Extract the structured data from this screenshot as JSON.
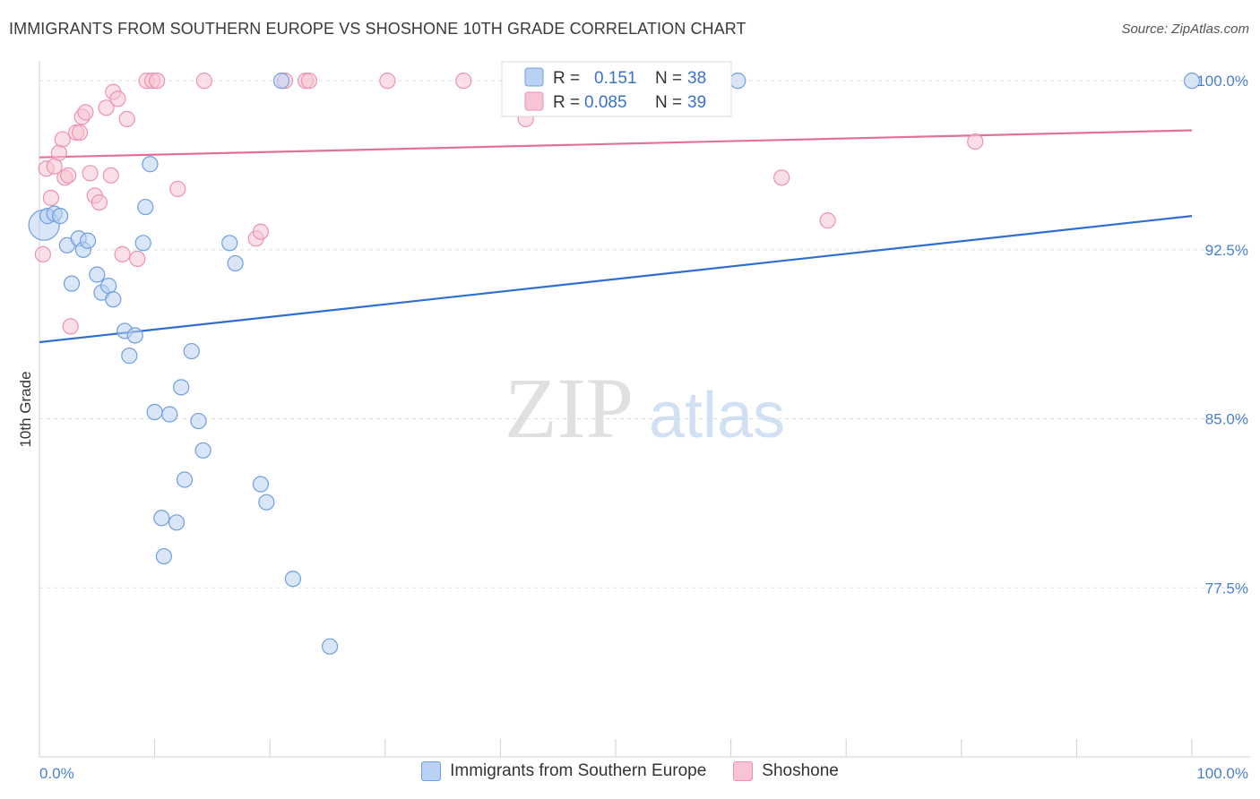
{
  "title": "IMMIGRANTS FROM SOUTHERN EUROPE VS SHOSHONE 10TH GRADE CORRELATION CHART",
  "source": "Source: ZipAtlas.com",
  "watermark": {
    "zip": "ZIP",
    "atlas": "atlas"
  },
  "legend_labels": {
    "r": "R =",
    "n": "N ="
  },
  "colors": {
    "blue_fill": "#b9d2f3",
    "blue_stroke": "#6f9fdc",
    "blue_line": "#2e6fd0",
    "pink_fill": "#f8c4d4",
    "pink_stroke": "#ec93ae",
    "pink_line": "#e2709a",
    "grid": "#dedede",
    "axis_label": "#4a7fd0"
  },
  "chart_data": {
    "type": "scatter",
    "title": "IMMIGRANTS FROM SOUTHERN EUROPE VS SHOSHONE 10TH GRADE CORRELATION CHART",
    "xlabel": "",
    "ylabel": "10th Grade",
    "xlim": [
      0,
      100
    ],
    "ylim": [
      70.0,
      100.8
    ],
    "x_tick_labels": [
      "0.0%",
      "100.0%"
    ],
    "y_ticks": [
      100.0,
      92.5,
      85.0,
      77.5
    ],
    "y_tick_labels": [
      "100.0%",
      "92.5%",
      "85.0%",
      "77.5%"
    ],
    "grid": true,
    "series": [
      {
        "name": "Immigrants from Southern Europe",
        "color": "blue",
        "R": "0.151",
        "N": "38",
        "trend": {
          "x": [
            0,
            100
          ],
          "y": [
            88.4,
            94.0
          ]
        },
        "points": [
          {
            "x": 0.4,
            "y": 93.6,
            "big": true
          },
          {
            "x": 0.7,
            "y": 94.0
          },
          {
            "x": 1.3,
            "y": 94.1
          },
          {
            "x": 1.8,
            "y": 94.0
          },
          {
            "x": 2.4,
            "y": 92.7
          },
          {
            "x": 2.8,
            "y": 91.0
          },
          {
            "x": 3.4,
            "y": 93.0
          },
          {
            "x": 3.8,
            "y": 92.5
          },
          {
            "x": 4.2,
            "y": 92.9
          },
          {
            "x": 5.0,
            "y": 91.4
          },
          {
            "x": 5.4,
            "y": 90.6
          },
          {
            "x": 6.0,
            "y": 90.9
          },
          {
            "x": 6.4,
            "y": 90.3
          },
          {
            "x": 7.4,
            "y": 88.9
          },
          {
            "x": 7.8,
            "y": 87.8
          },
          {
            "x": 8.3,
            "y": 88.7
          },
          {
            "x": 9.0,
            "y": 92.8
          },
          {
            "x": 9.2,
            "y": 94.4
          },
          {
            "x": 9.6,
            "y": 96.3
          },
          {
            "x": 10.0,
            "y": 85.3
          },
          {
            "x": 10.6,
            "y": 80.6
          },
          {
            "x": 10.8,
            "y": 78.9
          },
          {
            "x": 11.3,
            "y": 85.2
          },
          {
            "x": 11.9,
            "y": 80.4
          },
          {
            "x": 12.3,
            "y": 86.4
          },
          {
            "x": 12.6,
            "y": 82.3
          },
          {
            "x": 13.2,
            "y": 88.0
          },
          {
            "x": 13.8,
            "y": 84.9
          },
          {
            "x": 14.2,
            "y": 83.6
          },
          {
            "x": 16.5,
            "y": 92.8
          },
          {
            "x": 17.0,
            "y": 91.9
          },
          {
            "x": 19.2,
            "y": 82.1
          },
          {
            "x": 19.7,
            "y": 81.3
          },
          {
            "x": 21.0,
            "y": 100.0
          },
          {
            "x": 22.0,
            "y": 77.9
          },
          {
            "x": 25.2,
            "y": 74.9
          },
          {
            "x": 60.6,
            "y": 100.0
          },
          {
            "x": 100.0,
            "y": 100.0
          }
        ]
      },
      {
        "name": "Shoshone",
        "color": "pink",
        "R": "0.085",
        "N": "39",
        "trend": {
          "x": [
            0,
            100
          ],
          "y": [
            96.6,
            97.8
          ]
        },
        "points": [
          {
            "x": 0.3,
            "y": 92.3
          },
          {
            "x": 0.6,
            "y": 96.1
          },
          {
            "x": 1.0,
            "y": 94.8
          },
          {
            "x": 1.3,
            "y": 96.2
          },
          {
            "x": 1.7,
            "y": 96.8
          },
          {
            "x": 2.0,
            "y": 97.4
          },
          {
            "x": 2.2,
            "y": 95.7
          },
          {
            "x": 2.5,
            "y": 95.8
          },
          {
            "x": 2.7,
            "y": 89.1
          },
          {
            "x": 3.2,
            "y": 97.7
          },
          {
            "x": 3.5,
            "y": 97.7
          },
          {
            "x": 3.7,
            "y": 98.4
          },
          {
            "x": 4.0,
            "y": 98.6
          },
          {
            "x": 4.4,
            "y": 95.9
          },
          {
            "x": 4.8,
            "y": 94.9
          },
          {
            "x": 5.2,
            "y": 94.6
          },
          {
            "x": 5.8,
            "y": 98.8
          },
          {
            "x": 6.2,
            "y": 95.8
          },
          {
            "x": 6.4,
            "y": 99.5
          },
          {
            "x": 6.8,
            "y": 99.2
          },
          {
            "x": 7.2,
            "y": 92.3
          },
          {
            "x": 7.6,
            "y": 98.3
          },
          {
            "x": 8.5,
            "y": 92.1
          },
          {
            "x": 9.3,
            "y": 100.0
          },
          {
            "x": 9.8,
            "y": 100.0
          },
          {
            "x": 10.2,
            "y": 100.0
          },
          {
            "x": 12.0,
            "y": 95.2
          },
          {
            "x": 14.3,
            "y": 100.0
          },
          {
            "x": 18.8,
            "y": 93.0
          },
          {
            "x": 19.2,
            "y": 93.3
          },
          {
            "x": 21.3,
            "y": 100.0
          },
          {
            "x": 23.1,
            "y": 100.0
          },
          {
            "x": 23.4,
            "y": 100.0
          },
          {
            "x": 30.2,
            "y": 100.0
          },
          {
            "x": 36.8,
            "y": 100.0
          },
          {
            "x": 42.2,
            "y": 98.3
          },
          {
            "x": 64.4,
            "y": 95.7
          },
          {
            "x": 68.4,
            "y": 93.8
          },
          {
            "x": 81.2,
            "y": 97.3
          }
        ]
      }
    ]
  }
}
